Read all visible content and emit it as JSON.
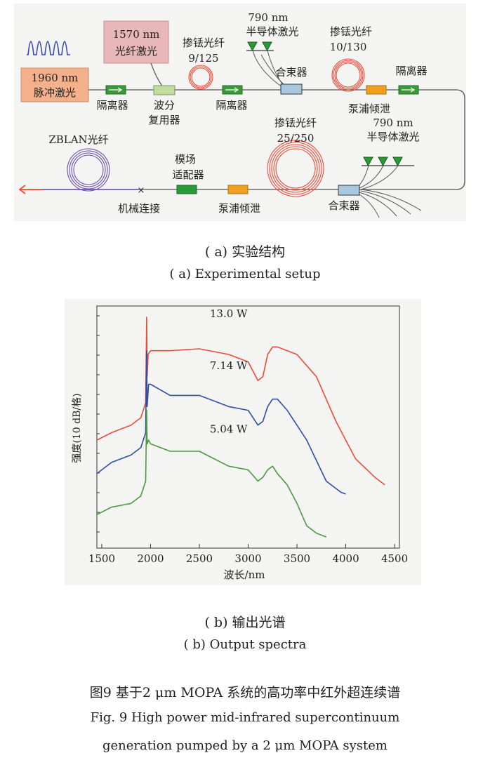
{
  "setup": {
    "seed_laser": {
      "line1": "1960 nm",
      "line2": "脉冲激光"
    },
    "signal_laser": {
      "line1": "1570 nm",
      "line2": "光纤激光"
    },
    "isolator_label": "隔离器",
    "wdm": {
      "line1": "波分",
      "line2": "复用器"
    },
    "tdf1": {
      "line1": "掺铥光纤",
      "line2": "9/125"
    },
    "diode_top": {
      "line1": "790 nm",
      "line2": "半导体激光"
    },
    "combiner_label": "合束器",
    "tdf2": {
      "line1": "掺铥光纤",
      "line2": "10/130"
    },
    "pump_dump_label": "泵浦倾泄",
    "tdf3": {
      "line1": "掺铥光纤",
      "line2": "25/250"
    },
    "diode_bottom": {
      "line1": "790 nm",
      "line2": "半导体激光"
    },
    "zblan_label": "ZBLAN光纤",
    "mode_adapter": {
      "line1": "模场",
      "line2": "适配器"
    },
    "splice_label": "机械连接",
    "colors": {
      "red": "#ec4b3a",
      "purple": "#6a4fb8",
      "green": "#2a9a3a",
      "orange": "#f0a020",
      "salmon": "#f4b08a",
      "pink": "#e8b8b8"
    }
  },
  "captions": {
    "a_cn": "( a)  实验结构",
    "a_en": "( a)  Experimental setup",
    "b_cn": "( b)  输出光谱",
    "b_en": "( b)  Output spectra",
    "fig_cn": "图9   基于2 μm MOPA 系统的高功率中红外超连续谱",
    "fig_en1": "Fig. 9    High power mid-infrared supercontinuum",
    "fig_en2": "generation pumped by a 2 μm MOPA system"
  },
  "chart_data": {
    "type": "line",
    "xlabel": "波长/nm",
    "ylabel": "强度(10 dB/格)",
    "xlim": [
      1450,
      4550
    ],
    "xticks": [
      1500,
      2000,
      2500,
      3000,
      3500,
      4000,
      4500
    ],
    "grid": false,
    "series": [
      {
        "name": "13.0 W",
        "color": "#ec4b3a",
        "x": [
          1450,
          1600,
          1800,
          1900,
          1950,
          1960,
          1965,
          1975,
          2000,
          2200,
          2500,
          2800,
          3000,
          3100,
          3150,
          3200,
          3250,
          3300,
          3500,
          3700,
          3900,
          4100,
          4300,
          4400
        ],
        "y": [
          -3.3,
          -3.1,
          -2.9,
          -2.7,
          -2.3,
          0,
          -1.6,
          -1.0,
          -0.9,
          -0.9,
          -0.85,
          -1.0,
          -1.2,
          -1.7,
          -1.6,
          -1.0,
          -0.8,
          -0.8,
          -1.0,
          -1.6,
          -2.8,
          -3.8,
          -4.3,
          -4.5
        ]
      },
      {
        "name": "7.14 W",
        "color": "#2e4ea8",
        "x": [
          1450,
          1600,
          1800,
          1900,
          1950,
          1960,
          1965,
          1980,
          2000,
          2200,
          2500,
          2800,
          3000,
          3100,
          3150,
          3200,
          3250,
          3300,
          3400,
          3600,
          3800,
          3950,
          4000
        ],
        "y": [
          -4.2,
          -3.9,
          -3.7,
          -3.5,
          -3.1,
          -0.9,
          -2.4,
          -1.8,
          -1.8,
          -2.1,
          -2.1,
          -2.4,
          -2.5,
          -2.9,
          -2.8,
          -2.4,
          -2.2,
          -2.2,
          -2.5,
          -3.3,
          -4.4,
          -4.7,
          -4.75
        ]
      },
      {
        "name": "5.04 W",
        "color": "#4a9a3e",
        "x": [
          1450,
          1600,
          1800,
          1900,
          1950,
          1960,
          1965,
          1980,
          2000,
          2200,
          2500,
          2800,
          3000,
          3100,
          3150,
          3200,
          3250,
          3300,
          3400,
          3500,
          3600,
          3700,
          3800
        ],
        "y": [
          -5.3,
          -5.1,
          -5.0,
          -4.8,
          -4.4,
          -2.5,
          -3.4,
          -3.3,
          -3.4,
          -3.6,
          -3.6,
          -4.0,
          -4.1,
          -4.4,
          -4.3,
          -4.1,
          -4.0,
          -4.2,
          -4.5,
          -5.0,
          -5.6,
          -5.8,
          -5.9
        ]
      }
    ]
  }
}
